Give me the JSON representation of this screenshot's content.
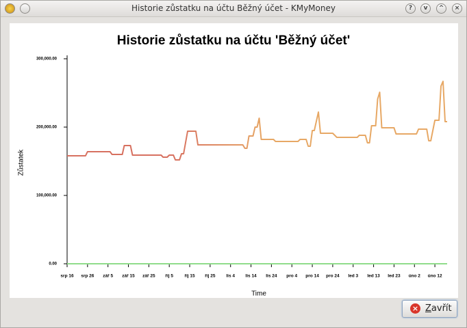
{
  "window": {
    "title": "Historie zůstatku na účtu Běžný účet - KMyMoney"
  },
  "buttons": [
    {
      "label": "Zavřít"
    }
  ],
  "chart_data": {
    "type": "line",
    "title": "Historie zůstatku na účtu 'Běžný účet'",
    "x_label": "Time",
    "y_label": "Zůstatek",
    "gradient": [
      "#d7705f",
      "#e7a865"
    ],
    "axis_color": "#8fdc8a",
    "x": [
      0,
      9,
      10,
      21,
      22,
      27,
      28,
      31,
      32,
      46,
      47,
      49,
      50,
      52,
      53,
      55,
      56,
      57,
      59,
      63,
      64,
      86,
      87,
      88,
      89,
      91,
      92,
      93,
      94,
      95,
      101,
      102,
      113,
      114,
      117,
      118,
      119,
      120,
      121,
      123,
      124,
      130,
      132,
      142,
      143,
      146,
      147,
      148,
      149,
      151,
      152,
      153,
      154,
      160,
      161,
      171,
      172,
      176,
      177,
      178,
      180,
      182,
      183,
      184,
      185,
      186
    ],
    "values": [
      158000,
      158000,
      164000,
      164000,
      160000,
      160000,
      173000,
      173000,
      159000,
      159000,
      156000,
      156000,
      159000,
      159000,
      152000,
      152000,
      161000,
      161000,
      194000,
      194000,
      174000,
      174000,
      169000,
      169000,
      187000,
      187000,
      200000,
      200000,
      213000,
      182000,
      182000,
      179000,
      179000,
      182000,
      182000,
      172000,
      172000,
      195000,
      195000,
      222000,
      191000,
      191000,
      185000,
      185000,
      188000,
      188000,
      177000,
      177000,
      202000,
      202000,
      241000,
      251000,
      199000,
      199000,
      190000,
      190000,
      197000,
      197000,
      180000,
      180000,
      210000,
      210000,
      260000,
      267000,
      208000,
      208000
    ],
    "xlim": [
      0,
      186
    ],
    "xticks": [
      {
        "value": 0,
        "label": "srp 16"
      },
      {
        "value": 10,
        "label": "srp 26"
      },
      {
        "value": 20,
        "label": "zář 5"
      },
      {
        "value": 30,
        "label": "zář 15"
      },
      {
        "value": 40,
        "label": "zář 25"
      },
      {
        "value": 50,
        "label": "říj 5"
      },
      {
        "value": 60,
        "label": "říj 15"
      },
      {
        "value": 70,
        "label": "říj 25"
      },
      {
        "value": 80,
        "label": "lis 4"
      },
      {
        "value": 90,
        "label": "lis 14"
      },
      {
        "value": 100,
        "label": "lis 24"
      },
      {
        "value": 110,
        "label": "pro 4"
      },
      {
        "value": 120,
        "label": "pro 14"
      },
      {
        "value": 130,
        "label": "pro 24"
      },
      {
        "value": 140,
        "label": "led 3"
      },
      {
        "value": 150,
        "label": "led 13"
      },
      {
        "value": 160,
        "label": "led 23"
      },
      {
        "value": 170,
        "label": "úno 2"
      },
      {
        "value": 180,
        "label": "úno 12"
      }
    ],
    "ylim": [
      0,
      300000
    ],
    "yticks": [
      {
        "value": 0,
        "label": "0.00"
      },
      {
        "value": 100000,
        "label": "100,000.00"
      },
      {
        "value": 200000,
        "label": "200,000.00"
      },
      {
        "value": 300000,
        "label": "300,000.00"
      }
    ]
  }
}
